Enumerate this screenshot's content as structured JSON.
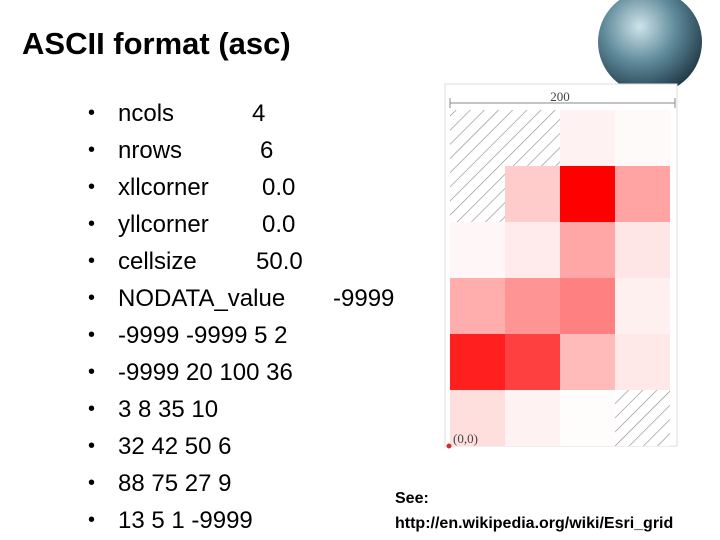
{
  "title": "ASCII format (asc)",
  "header_lines": [
    [
      "ncols",
      "4"
    ],
    [
      "nrows",
      "6"
    ],
    [
      "xllcorner",
      "0.0"
    ],
    [
      "yllcorner",
      "0.0"
    ],
    [
      "cellsize",
      "50.0"
    ],
    [
      "NODATA_value",
      "-9999"
    ]
  ],
  "data_rows": [
    "-9999 -9999 5 2",
    "-9999 20 100 36",
    "3 8 35 10",
    "32 42 50 6",
    "88 75 27 9",
    "13 5 1 -9999"
  ],
  "figure": {
    "width_label": "200",
    "origin_label": "(0,0)"
  },
  "reference": {
    "label": "See:",
    "url": "http://en.wikipedia.org/wiki/Esri_grid"
  }
}
